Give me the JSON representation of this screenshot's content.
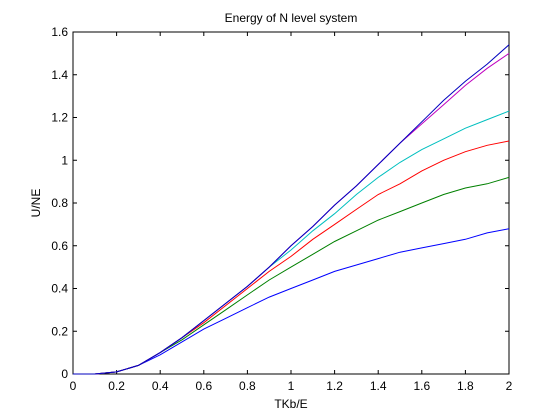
{
  "chart_data": {
    "type": "line",
    "title": "Energy of N level system",
    "xlabel": "TKb/E",
    "ylabel": "U/NE",
    "xlim": [
      0,
      2
    ],
    "ylim": [
      0,
      1.6
    ],
    "xticks": [
      "0",
      "0.2",
      "0.4",
      "0.6",
      "0.8",
      "1",
      "1.2",
      "1.4",
      "1.6",
      "1.8",
      "2"
    ],
    "yticks": [
      "0",
      "0.2",
      "0.4",
      "0.6",
      "0.8",
      "1",
      "1.2",
      "1.4",
      "1.6"
    ],
    "grid": false,
    "legend": "none",
    "x": [
      0,
      0.1,
      0.2,
      0.3,
      0.4,
      0.5,
      0.6,
      0.7,
      0.8,
      0.9,
      1.0,
      1.1,
      1.2,
      1.3,
      1.4,
      1.5,
      1.6,
      1.7,
      1.8,
      1.9,
      2.0
    ],
    "series": [
      {
        "color": "#0000ff",
        "values": [
          0,
          0.0,
          0.01,
          0.04,
          0.09,
          0.15,
          0.21,
          0.26,
          0.31,
          0.36,
          0.4,
          0.44,
          0.48,
          0.51,
          0.54,
          0.57,
          0.59,
          0.61,
          0.63,
          0.66,
          0.68
        ]
      },
      {
        "color": "#008000",
        "values": [
          0,
          0.0,
          0.01,
          0.04,
          0.1,
          0.16,
          0.23,
          0.3,
          0.37,
          0.44,
          0.5,
          0.56,
          0.62,
          0.67,
          0.72,
          0.76,
          0.8,
          0.84,
          0.87,
          0.89,
          0.92
        ]
      },
      {
        "color": "#ff0000",
        "values": [
          0,
          0.0,
          0.01,
          0.04,
          0.1,
          0.17,
          0.24,
          0.32,
          0.4,
          0.48,
          0.55,
          0.63,
          0.7,
          0.77,
          0.84,
          0.89,
          0.95,
          1.0,
          1.04,
          1.07,
          1.09
        ]
      },
      {
        "color": "#00bfbf",
        "values": [
          0,
          0.0,
          0.01,
          0.04,
          0.1,
          0.17,
          0.25,
          0.33,
          0.41,
          0.5,
          0.58,
          0.67,
          0.75,
          0.84,
          0.92,
          0.99,
          1.05,
          1.1,
          1.15,
          1.19,
          1.23
        ]
      },
      {
        "color": "#bf00bf",
        "values": [
          0,
          0.0,
          0.01,
          0.04,
          0.1,
          0.17,
          0.25,
          0.33,
          0.41,
          0.5,
          0.6,
          0.69,
          0.79,
          0.88,
          0.98,
          1.08,
          1.17,
          1.26,
          1.35,
          1.43,
          1.5
        ]
      },
      {
        "color": "#0000bf",
        "values": [
          0,
          0.0,
          0.01,
          0.04,
          0.1,
          0.17,
          0.25,
          0.33,
          0.41,
          0.5,
          0.6,
          0.69,
          0.79,
          0.88,
          0.98,
          1.08,
          1.18,
          1.28,
          1.37,
          1.45,
          1.54
        ]
      }
    ]
  }
}
